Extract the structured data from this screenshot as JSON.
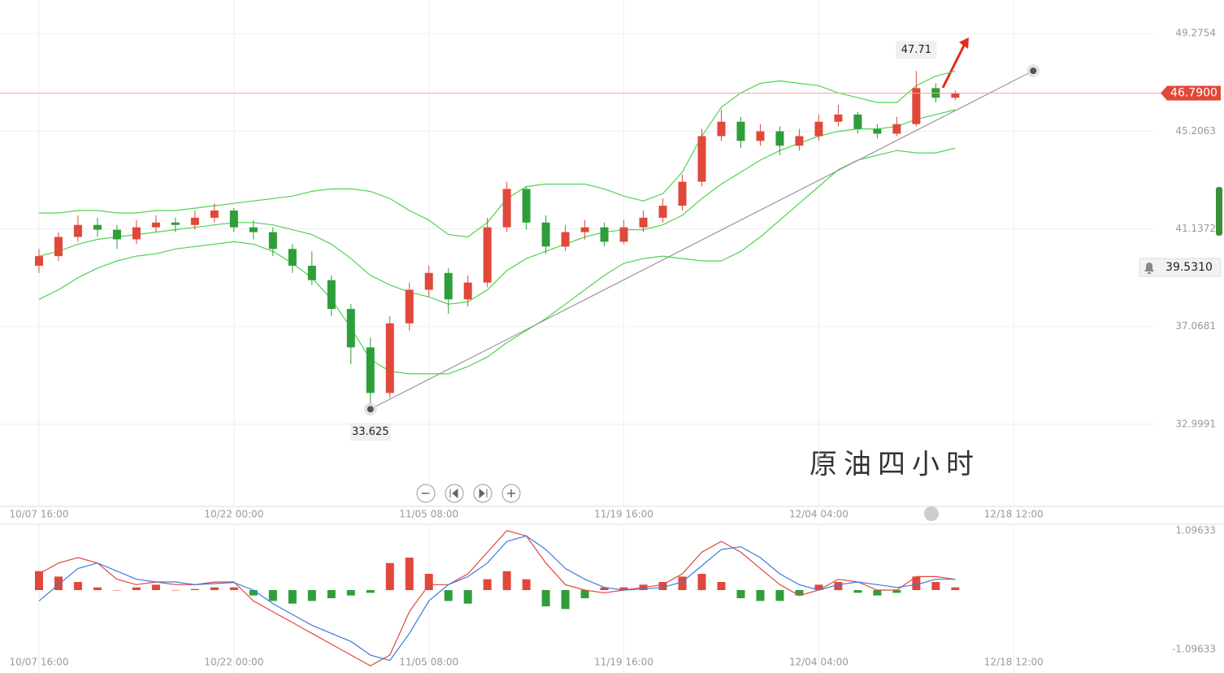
{
  "chart_data": [
    {
      "type": "candlestick",
      "watermark": "原油四小时",
      "up_color": "#e0483a",
      "down_color": "#2e9e3a",
      "open": [
        39.6,
        40.0,
        40.8,
        41.3,
        41.1,
        40.7,
        41.2,
        41.4,
        41.3,
        41.6,
        41.9,
        41.2,
        41.0,
        40.3,
        39.6,
        39.0,
        37.8,
        36.2,
        34.3,
        37.2,
        38.6,
        39.3,
        38.2,
        38.9,
        41.2,
        42.8,
        41.4,
        40.4,
        41.0,
        41.2,
        40.6,
        41.2,
        41.6,
        42.1,
        43.1,
        45.0,
        45.6,
        44.8,
        45.2,
        44.6,
        45.0,
        45.6,
        45.9,
        45.3,
        45.1,
        45.5,
        47.0,
        46.6
      ],
      "high": [
        40.3,
        41.0,
        41.7,
        41.6,
        41.3,
        41.5,
        41.7,
        41.6,
        41.9,
        42.2,
        42.0,
        41.5,
        41.2,
        40.5,
        40.2,
        39.2,
        38.0,
        36.6,
        37.5,
        38.9,
        39.6,
        39.5,
        39.2,
        41.6,
        43.1,
        42.9,
        41.7,
        41.3,
        41.5,
        41.4,
        41.5,
        41.9,
        42.4,
        43.4,
        45.3,
        46.1,
        45.8,
        45.5,
        45.4,
        45.3,
        45.9,
        46.3,
        46.0,
        45.5,
        45.8,
        47.71,
        47.2,
        46.9
      ],
      "low": [
        39.3,
        39.8,
        40.6,
        40.8,
        40.3,
        40.5,
        41.0,
        41.0,
        41.1,
        41.4,
        41.0,
        40.7,
        40.0,
        39.3,
        38.8,
        37.5,
        35.5,
        33.625,
        34.1,
        36.9,
        38.3,
        37.6,
        37.9,
        38.7,
        41.0,
        41.1,
        40.1,
        40.2,
        40.7,
        40.4,
        40.5,
        41.0,
        41.4,
        41.9,
        42.9,
        44.8,
        44.5,
        44.6,
        44.2,
        44.4,
        44.8,
        45.4,
        45.1,
        44.9,
        45.0,
        45.4,
        46.4,
        46.5
      ],
      "close": [
        40.0,
        40.8,
        41.3,
        41.1,
        40.7,
        41.2,
        41.4,
        41.3,
        41.6,
        41.9,
        41.2,
        41.0,
        40.3,
        39.6,
        39.0,
        37.8,
        36.2,
        34.3,
        37.2,
        38.6,
        39.3,
        38.2,
        38.9,
        41.2,
        42.8,
        41.4,
        40.4,
        41.0,
        41.2,
        40.6,
        41.2,
        41.6,
        42.1,
        43.1,
        45.0,
        45.6,
        44.8,
        45.2,
        44.6,
        45.0,
        45.6,
        45.9,
        45.3,
        45.1,
        45.5,
        47.0,
        46.6,
        46.79
      ],
      "bands": {
        "color": "#4fd44f",
        "upper": [
          41.8,
          41.8,
          41.9,
          41.9,
          41.8,
          41.8,
          41.9,
          41.9,
          42.0,
          42.1,
          42.2,
          42.3,
          42.4,
          42.5,
          42.7,
          42.8,
          42.8,
          42.7,
          42.4,
          41.9,
          41.5,
          40.9,
          40.8,
          41.4,
          42.4,
          42.9,
          43.0,
          43.0,
          43.0,
          42.8,
          42.5,
          42.3,
          42.6,
          43.5,
          45.0,
          46.2,
          46.8,
          47.2,
          47.3,
          47.2,
          47.1,
          46.8,
          46.6,
          46.4,
          46.4,
          47.1,
          47.5,
          47.7
        ],
        "middle": [
          40.0,
          40.2,
          40.5,
          40.7,
          40.8,
          40.9,
          41.0,
          41.1,
          41.2,
          41.3,
          41.4,
          41.4,
          41.3,
          41.1,
          40.9,
          40.5,
          39.9,
          39.2,
          38.8,
          38.5,
          38.3,
          38.0,
          38.1,
          38.6,
          39.4,
          39.9,
          40.2,
          40.5,
          40.8,
          41.0,
          41.1,
          41.1,
          41.3,
          41.7,
          42.4,
          43.0,
          43.5,
          44.0,
          44.4,
          44.7,
          45.0,
          45.2,
          45.3,
          45.3,
          45.4,
          45.7,
          45.9,
          46.1
        ],
        "lower": [
          38.2,
          38.6,
          39.1,
          39.5,
          39.8,
          40.0,
          40.1,
          40.3,
          40.4,
          40.5,
          40.6,
          40.5,
          40.2,
          39.7,
          39.1,
          38.2,
          37.0,
          35.7,
          35.2,
          35.1,
          35.1,
          35.1,
          35.4,
          35.8,
          36.4,
          36.9,
          37.4,
          38.0,
          38.6,
          39.2,
          39.7,
          39.9,
          40.0,
          39.9,
          39.8,
          39.8,
          40.2,
          40.8,
          41.5,
          42.2,
          42.9,
          43.6,
          44.0,
          44.2,
          44.4,
          44.3,
          44.3,
          44.5
        ]
      },
      "xlim": [
        -2,
        57.2
      ],
      "xticks": [
        {
          "value": 0,
          "label": "10/07 16:00"
        },
        {
          "value": 10,
          "label": "10/22 00:00"
        },
        {
          "value": 20,
          "label": "11/05 08:00"
        },
        {
          "value": 30,
          "label": "11/19 16:00"
        },
        {
          "value": 40,
          "label": "12/04 04:00"
        },
        {
          "value": 50,
          "label": "12/18 12:00"
        }
      ],
      "ylim": [
        29.61,
        50.67
      ],
      "yticks": [
        49.2754,
        45.2063,
        41.1372,
        37.0681,
        32.9991
      ],
      "grid": true,
      "last_price": {
        "value": 46.79,
        "label": "46.7900"
      },
      "alert": {
        "value": 39.531,
        "label": "39.5310"
      },
      "annotations": [
        {
          "x": 45,
          "y": 47.71,
          "position": "above"
        },
        {
          "x": 17,
          "y": 33.625,
          "position": "below"
        }
      ],
      "trend_line": {
        "x": [
          17,
          51
        ],
        "y": [
          33.625,
          47.72
        ]
      }
    },
    {
      "type": "macd",
      "ylim": [
        -1.532,
        1.2165
      ],
      "yticks": [
        1.09633,
        -1.09633
      ],
      "histogram": [
        0.35,
        0.25,
        0.15,
        0.05,
        0.0,
        0.05,
        0.1,
        0.0,
        0.02,
        0.05,
        0.05,
        -0.1,
        -0.2,
        -0.25,
        -0.2,
        -0.15,
        -0.1,
        -0.05,
        0.5,
        0.6,
        0.3,
        -0.2,
        -0.25,
        0.2,
        0.35,
        0.2,
        -0.3,
        -0.35,
        -0.15,
        0.05,
        0.05,
        0.1,
        0.15,
        0.25,
        0.3,
        0.15,
        -0.15,
        -0.2,
        -0.2,
        -0.1,
        0.1,
        0.15,
        -0.05,
        -0.1,
        -0.05,
        0.25,
        0.15,
        0.05
      ],
      "dif": [
        0.3,
        0.5,
        0.6,
        0.5,
        0.2,
        0.1,
        0.15,
        0.1,
        0.1,
        0.15,
        0.15,
        -0.2,
        -0.4,
        -0.6,
        -0.8,
        -1.0,
        -1.2,
        -1.4,
        -1.2,
        -0.4,
        0.1,
        0.1,
        0.3,
        0.7,
        1.1,
        1.0,
        0.5,
        0.1,
        0.0,
        -0.05,
        0.0,
        0.05,
        0.1,
        0.3,
        0.7,
        0.9,
        0.7,
        0.4,
        0.1,
        -0.1,
        0.0,
        0.2,
        0.15,
        0.0,
        0.0,
        0.25,
        0.25,
        0.2
      ],
      "dea": [
        -0.2,
        0.1,
        0.4,
        0.5,
        0.35,
        0.2,
        0.15,
        0.15,
        0.1,
        0.12,
        0.14,
        0.0,
        -0.25,
        -0.45,
        -0.65,
        -0.8,
        -0.95,
        -1.2,
        -1.3,
        -0.8,
        -0.2,
        0.1,
        0.25,
        0.5,
        0.9,
        1.0,
        0.75,
        0.4,
        0.2,
        0.05,
        0.0,
        0.02,
        0.05,
        0.15,
        0.45,
        0.75,
        0.8,
        0.6,
        0.3,
        0.1,
        0.0,
        0.1,
        0.15,
        0.1,
        0.05,
        0.1,
        0.2,
        0.2
      ],
      "dif_color": "#e0483a",
      "dea_color": "#3a7be0",
      "up_color": "#e0483a",
      "down_color": "#2e9e3a"
    }
  ]
}
